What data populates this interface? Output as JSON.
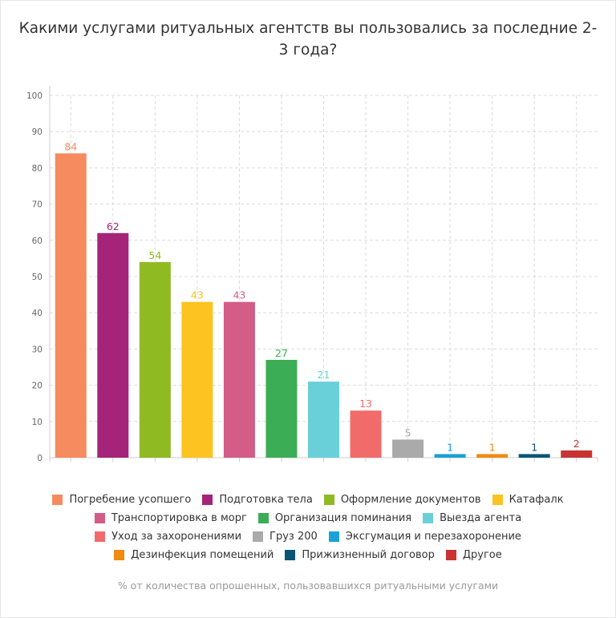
{
  "chart_data": {
    "type": "bar",
    "title": "Какими услугами ритуальных агентств вы пользовались за последние 2-3 года?",
    "subtitle": "% от количества опрошенных, пользовавшихся ритуальными услугами",
    "categories": [
      "Погребение усопшего",
      "Подготовка тела",
      "Оформление документов",
      "Катафалк",
      "Транспортировка в морг",
      "Организация поминания",
      "Выезда агента",
      "Уход за захоронениями",
      "Груз 200",
      "Эксгумация и перезахоронение",
      "Дезинфекция помещений",
      "Прижизненный договор",
      "Другое"
    ],
    "values": [
      84,
      62,
      54,
      43,
      43,
      27,
      21,
      13,
      5,
      1,
      1,
      1,
      2
    ],
    "colors": [
      "#f68b5f",
      "#a6237a",
      "#8fba22",
      "#fcc321",
      "#d35d86",
      "#3aad55",
      "#69d0d9",
      "#f26b6b",
      "#aaaaaa",
      "#1aa1d6",
      "#f28a10",
      "#0b5577",
      "#c93331"
    ],
    "ylim": [
      0,
      100
    ],
    "yticks": [
      0,
      10,
      20,
      30,
      40,
      50,
      60,
      70,
      80,
      90,
      100
    ],
    "grid": true,
    "legend": "bottom",
    "data_labels": true
  }
}
